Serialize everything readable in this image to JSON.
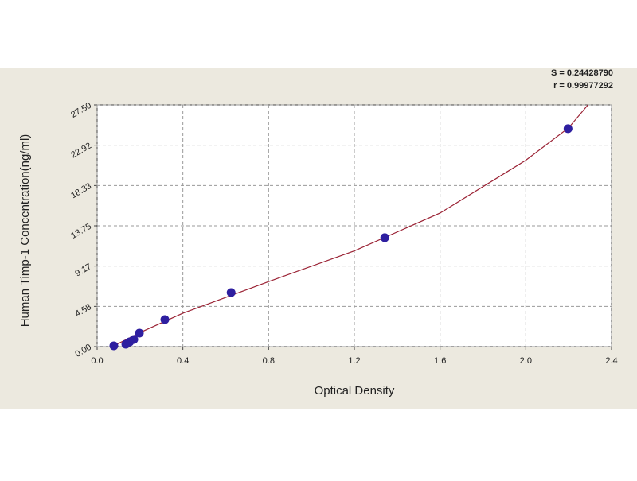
{
  "chart_data": {
    "type": "scatter",
    "xlabel": "Optical Density",
    "ylabel": "Human Timp-1 Concentration(ng/ml)",
    "annotations": [
      "S = 0.24428790",
      "r = 0.99977292"
    ],
    "xlim": [
      0,
      2.4
    ],
    "ylim": [
      0,
      27.5
    ],
    "xticks": [
      {
        "value": 0,
        "label": "0.0"
      },
      0.4,
      0.8,
      1.2,
      1.6,
      {
        "value": 2,
        "label": "2.0"
      },
      2.4
    ],
    "yticks": [
      {
        "value": 0,
        "label": "0.00"
      },
      4.58,
      9.17,
      13.75,
      18.33,
      22.92,
      {
        "value": 27.5,
        "label": "27.50"
      }
    ],
    "grid": true,
    "series": [
      {
        "color": "#2e1fa0",
        "x": [
          0.078,
          0.134,
          0.152,
          0.171,
          0.197,
          0.316,
          0.625,
          1.342,
          2.197
        ],
        "values": [
          0.09,
          0.27,
          0.54,
          0.81,
          1.54,
          3.08,
          6.15,
          12.4,
          24.8
        ]
      },
      {
        "type": "line",
        "color": "#9b2335",
        "x": [
          0.07,
          0.2,
          0.4,
          0.8,
          1.2,
          1.6,
          2.0,
          2.2,
          2.29
        ],
        "values": [
          0,
          1.6,
          3.8,
          7.4,
          10.9,
          15.2,
          21.2,
          24.9,
          27.5
        ]
      }
    ]
  }
}
